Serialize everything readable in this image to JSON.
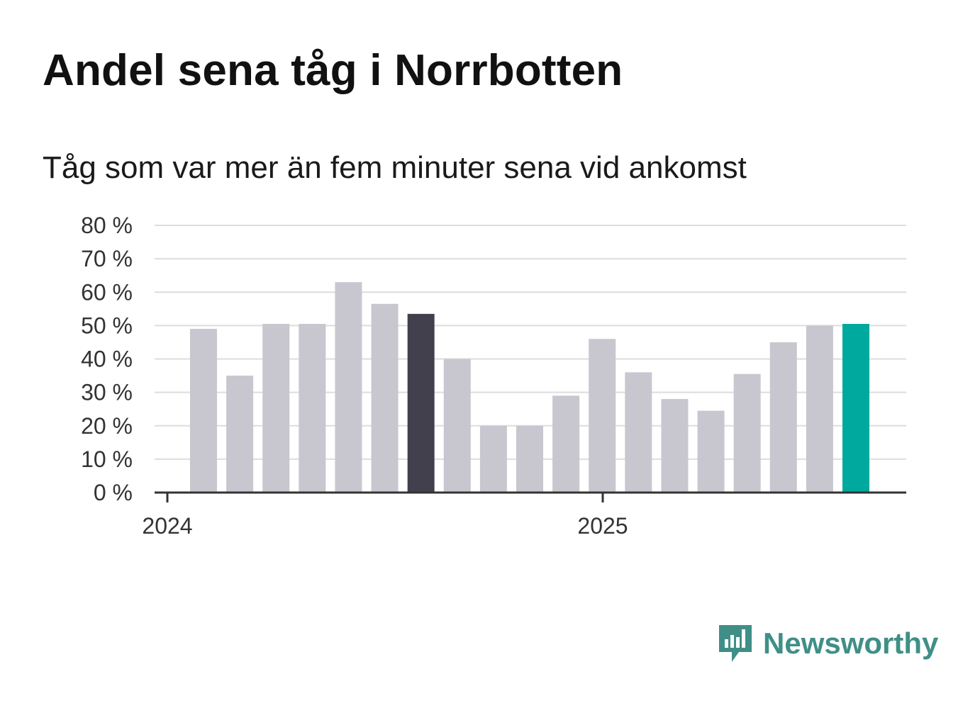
{
  "header": {
    "title": "Andel sena tåg i Norrbotten",
    "subtitle": "Tåg som var mer än fem minuter sena vid ankomst"
  },
  "brand": {
    "name": "Newsworthy",
    "icon": "newsworthy-logo-icon",
    "color": "#3f8f87"
  },
  "colors": {
    "bar_default": "#c8c7cf",
    "bar_highlight_dark": "#42404d",
    "bar_highlight_accent": "#00a99d",
    "grid": "#dddddd",
    "axis": "#333333"
  },
  "chart_data": {
    "type": "bar",
    "title": "Andel sena tåg i Norrbotten",
    "subtitle": "Tåg som var mer än fem minuter sena vid ankomst",
    "x_tick_labels": [
      "2024",
      "2025"
    ],
    "y_tick_labels": [
      "0 %",
      "10 %",
      "20 %",
      "30 %",
      "40 %",
      "50 %",
      "60 %",
      "70 %",
      "80 %"
    ],
    "ylim": [
      0,
      80
    ],
    "grid": true,
    "series": [
      {
        "values": [
          49,
          35,
          50.5,
          50.5,
          63,
          56.5,
          53.5,
          40,
          20,
          20,
          29,
          46,
          36,
          28,
          24.5,
          35.5,
          45,
          50,
          50.5
        ],
        "highlight": {
          "6": "bar_highlight_dark",
          "18": "bar_highlight_accent"
        }
      }
    ]
  }
}
